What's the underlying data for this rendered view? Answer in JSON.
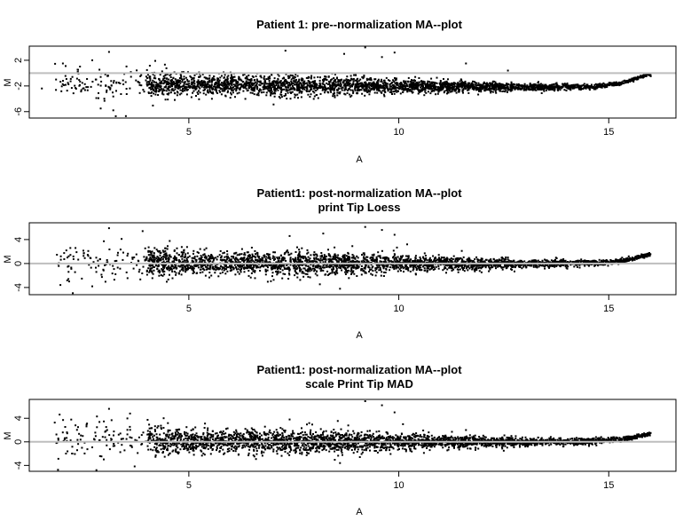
{
  "chart_data": [
    {
      "type": "scatter",
      "title": "Patient 1: pre--normalization MA--plot",
      "subtitle": "",
      "xlabel": "A",
      "ylabel": "M",
      "xlim": [
        1.2,
        16.6
      ],
      "ylim": [
        -7.0,
        4.2
      ],
      "xticks": [
        5,
        10,
        15
      ],
      "yticks": [
        2,
        -2,
        -6
      ],
      "reference_line": {
        "y": 0,
        "color": "#bebebe"
      },
      "point_color": "#000000",
      "cloud": {
        "center_points": [
          [
            2.5,
            -1.6
          ],
          [
            5,
            -1.8
          ],
          [
            8,
            -1.9
          ],
          [
            11,
            -2.1
          ],
          [
            13,
            -2.2
          ],
          [
            14.7,
            -2.1
          ],
          [
            15.3,
            -1.6
          ],
          [
            15.9,
            -0.3
          ]
        ],
        "spread_points": [
          [
            2.5,
            1.4
          ],
          [
            5,
            0.75
          ],
          [
            8,
            0.8
          ],
          [
            11,
            0.45
          ],
          [
            13,
            0.3
          ],
          [
            14.7,
            0.2
          ],
          [
            15.9,
            0.1
          ]
        ]
      },
      "outliers": [
        [
          1.5,
          -2.4
        ],
        [
          2.0,
          1.5
        ],
        [
          2.3,
          -2.3
        ],
        [
          2.7,
          2.0
        ],
        [
          2.9,
          -5.5
        ],
        [
          3.1,
          3.3
        ],
        [
          3.2,
          -5.8
        ],
        [
          3.5,
          -6.7
        ],
        [
          4.2,
          1.9
        ],
        [
          7.3,
          3.5
        ],
        [
          8.7,
          3.0
        ],
        [
          9.2,
          4.0
        ],
        [
          9.6,
          2.5
        ],
        [
          9.9,
          3.2
        ],
        [
          11.6,
          1.5
        ],
        [
          12.6,
          0.4
        ]
      ]
    },
    {
      "type": "scatter",
      "title": "Patient1: post-normalization MA--plot",
      "subtitle": "print Tip Loess",
      "xlabel": "A",
      "ylabel": "M",
      "xlim": [
        1.2,
        16.6
      ],
      "ylim": [
        -5.2,
        6.8
      ],
      "xticks": [
        5,
        10,
        15
      ],
      "yticks": [
        4,
        0,
        -4
      ],
      "reference_line": {
        "y": 0,
        "color": "#bebebe"
      },
      "point_color": "#000000",
      "cloud": {
        "center_points": [
          [
            2.5,
            0.2
          ],
          [
            5,
            0.1
          ],
          [
            8,
            0.0
          ],
          [
            11,
            0.0
          ],
          [
            13,
            0.0
          ],
          [
            14.7,
            0.1
          ],
          [
            15.4,
            0.5
          ],
          [
            16.0,
            1.6
          ]
        ],
        "spread_points": [
          [
            2.5,
            1.8
          ],
          [
            5,
            0.95
          ],
          [
            8,
            1.0
          ],
          [
            11,
            0.55
          ],
          [
            13,
            0.35
          ],
          [
            14.7,
            0.25
          ],
          [
            16.0,
            0.15
          ]
        ]
      },
      "outliers": [
        [
          2.3,
          2.6
        ],
        [
          2.7,
          -3.8
        ],
        [
          3.1,
          5.9
        ],
        [
          3.4,
          4.1
        ],
        [
          3.9,
          5.4
        ],
        [
          4.3,
          0.5
        ],
        [
          7.4,
          4.6
        ],
        [
          8.2,
          5.0
        ],
        [
          9.2,
          6.1
        ],
        [
          9.6,
          5.6
        ],
        [
          9.9,
          4.8
        ],
        [
          8.6,
          -4.2
        ],
        [
          10.2,
          3.2
        ],
        [
          11.5,
          2.1
        ],
        [
          12.6,
          1.0
        ]
      ]
    },
    {
      "type": "scatter",
      "title": "Patient1: post-normalization MA--plot",
      "subtitle": "scale Print Tip MAD",
      "xlabel": "A",
      "ylabel": "M",
      "xlim": [
        1.2,
        16.6
      ],
      "ylim": [
        -5.0,
        7.2
      ],
      "xticks": [
        5,
        10,
        15
      ],
      "yticks": [
        4,
        0,
        -4
      ],
      "reference_line": {
        "y": 0,
        "color": "#bebebe"
      },
      "point_color": "#000000",
      "cloud": {
        "center_points": [
          [
            2.5,
            0.2
          ],
          [
            5,
            0.1
          ],
          [
            8,
            0.0
          ],
          [
            11,
            0.0
          ],
          [
            13,
            0.0
          ],
          [
            14.7,
            0.1
          ],
          [
            15.4,
            0.5
          ],
          [
            16.0,
            1.4
          ]
        ],
        "spread_points": [
          [
            2.5,
            1.8
          ],
          [
            5,
            0.95
          ],
          [
            8,
            1.0
          ],
          [
            11,
            0.55
          ],
          [
            13,
            0.35
          ],
          [
            14.7,
            0.25
          ],
          [
            16.0,
            0.15
          ]
        ]
      },
      "outliers": [
        [
          2.3,
          2.8
        ],
        [
          2.8,
          -4.8
        ],
        [
          3.1,
          5.6
        ],
        [
          3.6,
          4.8
        ],
        [
          4.1,
          1.2
        ],
        [
          4.4,
          4.0
        ],
        [
          7.4,
          3.8
        ],
        [
          9.2,
          6.9
        ],
        [
          9.6,
          6.2
        ],
        [
          9.9,
          5.0
        ],
        [
          8.6,
          -3.6
        ],
        [
          10.1,
          3.0
        ],
        [
          11.6,
          2.0
        ],
        [
          12.5,
          -1.5
        ]
      ]
    }
  ]
}
